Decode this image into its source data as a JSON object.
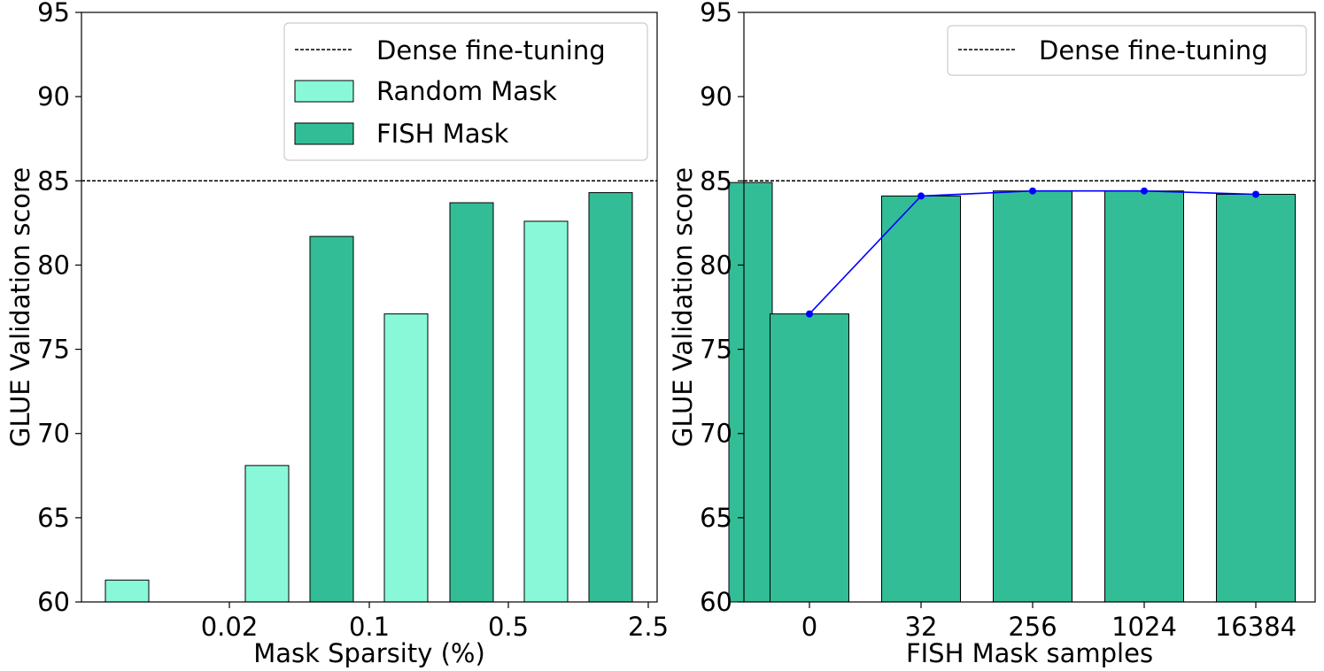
{
  "chart_data": [
    {
      "type": "bar",
      "xlabel": "Mask Sparsity (%)",
      "ylabel": "GLUE Validation score",
      "ylim": [
        60,
        95
      ],
      "yticks": [
        60,
        65,
        70,
        75,
        80,
        85,
        90,
        95
      ],
      "categories": [
        "0.02",
        "0.1",
        "0.5",
        "2.5"
      ],
      "series": [
        {
          "name": "Random Mask",
          "values": [
            61.3,
            68.1,
            77.1,
            82.6
          ],
          "color": "#88f8d8"
        },
        {
          "name": "FISH Mask",
          "values": [
            81.7,
            83.7,
            84.3,
            84.9
          ],
          "color": "#32bd96"
        }
      ],
      "reference_line": {
        "name": "Dense fine-tuning",
        "value": 85.0,
        "style": "dashed",
        "color": "#000000"
      },
      "legend": {
        "placement": "top-right"
      },
      "grid": false
    },
    {
      "type": "bar",
      "xlabel": "FISH Mask samples",
      "ylabel": "GLUE Validation score",
      "ylim": [
        60,
        95
      ],
      "yticks": [
        60,
        65,
        70,
        75,
        80,
        85,
        90,
        95
      ],
      "categories": [
        "0",
        "32",
        "256",
        "1024",
        "16384"
      ],
      "series": [
        {
          "values": [
            77.1,
            84.1,
            84.4,
            84.4,
            84.2
          ],
          "color": "#32bd96"
        }
      ],
      "line_overlay": {
        "values": [
          77.1,
          84.1,
          84.4,
          84.4,
          84.2
        ],
        "color": "#0000ff"
      },
      "reference_line": {
        "name": "Dense fine-tuning",
        "value": 85.0,
        "style": "dashed",
        "color": "#000000"
      },
      "legend": {
        "placement": "top-right"
      },
      "grid": false
    }
  ]
}
